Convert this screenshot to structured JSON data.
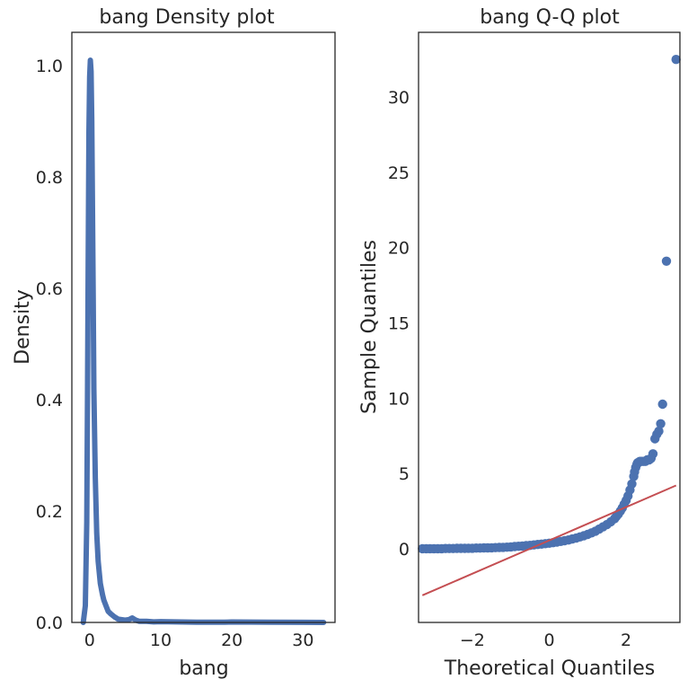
{
  "chart_data": [
    {
      "type": "line",
      "title": "bang Density plot",
      "xlabel": "bang",
      "ylabel": "Density",
      "xlim": [
        -2.5,
        34.5
      ],
      "ylim": [
        0,
        1.06
      ],
      "xticks": [
        0,
        10,
        20,
        30
      ],
      "xtick_labels": [
        "0",
        "10",
        "20",
        "30"
      ],
      "yticks": [
        0,
        0.2,
        0.4,
        0.6,
        0.8,
        1.0
      ],
      "ytick_labels": [
        "0.0",
        "0.2",
        "0.4",
        "0.6",
        "0.8",
        "1.0"
      ],
      "grid": false,
      "color": "#4c72b0",
      "series": [
        {
          "x": [
            -0.9,
            -0.6,
            -0.4,
            -0.3,
            -0.2,
            -0.1,
            0.0,
            0.1,
            0.2,
            0.3,
            0.4,
            0.5,
            0.6,
            0.8,
            1.0,
            1.2,
            1.5,
            1.8,
            2.0,
            2.3,
            2.6,
            3.0,
            3.5,
            4.0,
            5.0,
            5.5,
            6.0,
            6.5,
            7.0,
            8.0,
            9.0,
            10.0,
            12.0,
            15.0,
            19.0,
            20.0,
            25.0,
            30.0,
            32.9
          ],
          "y": [
            0.0,
            0.03,
            0.18,
            0.4,
            0.65,
            0.88,
            0.98,
            1.01,
            0.99,
            0.9,
            0.74,
            0.58,
            0.42,
            0.26,
            0.16,
            0.11,
            0.07,
            0.05,
            0.04,
            0.03,
            0.02,
            0.015,
            0.01,
            0.006,
            0.004,
            0.005,
            0.008,
            0.004,
            0.002,
            0.002,
            0.001,
            0.0015,
            0.001,
            0.0005,
            0.0003,
            0.0008,
            0.0003,
            0.0002,
            0.0
          ]
        }
      ]
    },
    {
      "type": "scatter",
      "title": "bang Q-Q plot",
      "xlabel": "Theoretical Quantiles",
      "ylabel": "Sample Quantiles",
      "xlim": [
        -3.4,
        3.4
      ],
      "ylim": [
        -4.9,
        34.3
      ],
      "xticks": [
        -2,
        0,
        2
      ],
      "xtick_labels": [
        "−2",
        "0",
        "2"
      ],
      "yticks": [
        0,
        5,
        10,
        15,
        20,
        25,
        30
      ],
      "ytick_labels": [
        "0",
        "5",
        "10",
        "15",
        "20",
        "25",
        "30"
      ],
      "grid": false,
      "marker_color": "#4c72b0",
      "line_color": "#c44e52",
      "reference_line": {
        "x": [
          -3.3,
          3.3
        ],
        "y": [
          -3.1,
          4.2
        ]
      },
      "series": [
        {
          "x": [
            -3.3,
            -3.2,
            -3.1,
            -3.0,
            -2.9,
            -2.8,
            -2.7,
            -2.6,
            -2.5,
            -2.4,
            -2.3,
            -2.2,
            -2.1,
            -2.0,
            -1.9,
            -1.8,
            -1.7,
            -1.6,
            -1.5,
            -1.4,
            -1.3,
            -1.2,
            -1.1,
            -1.0,
            -0.9,
            -0.8,
            -0.7,
            -0.6,
            -0.5,
            -0.4,
            -0.3,
            -0.2,
            -0.1,
            0.0,
            0.1,
            0.2,
            0.3,
            0.4,
            0.5,
            0.6,
            0.7,
            0.8,
            0.9,
            1.0,
            1.1,
            1.2,
            1.3,
            1.4,
            1.5,
            1.6,
            1.7,
            1.75,
            1.8,
            1.85,
            1.9,
            1.95,
            2.0,
            2.05,
            2.1,
            2.15,
            2.2,
            2.22,
            2.25,
            2.28,
            2.3,
            2.33,
            2.36,
            2.4,
            2.45,
            2.5,
            2.55,
            2.6,
            2.65,
            2.7,
            2.75,
            2.8,
            2.85,
            2.9,
            2.95,
            3.05,
            3.3
          ],
          "y": [
            0.0,
            0.0,
            0.0,
            0.0,
            0.0,
            0.0,
            0.01,
            0.01,
            0.01,
            0.02,
            0.02,
            0.02,
            0.03,
            0.03,
            0.04,
            0.04,
            0.05,
            0.05,
            0.06,
            0.07,
            0.08,
            0.09,
            0.1,
            0.12,
            0.14,
            0.16,
            0.18,
            0.2,
            0.22,
            0.25,
            0.28,
            0.3,
            0.33,
            0.36,
            0.4,
            0.44,
            0.48,
            0.53,
            0.58,
            0.64,
            0.7,
            0.78,
            0.86,
            0.95,
            1.05,
            1.16,
            1.3,
            1.45,
            1.6,
            1.78,
            2.0,
            2.15,
            2.3,
            2.5,
            2.7,
            2.95,
            3.2,
            3.5,
            3.9,
            4.3,
            4.8,
            5.1,
            5.4,
            5.6,
            5.7,
            5.75,
            5.8,
            5.8,
            5.8,
            5.8,
            5.9,
            5.9,
            6.0,
            6.3,
            7.3,
            7.6,
            7.8,
            8.3,
            9.6,
            19.1,
            32.5
          ]
        }
      ]
    }
  ]
}
